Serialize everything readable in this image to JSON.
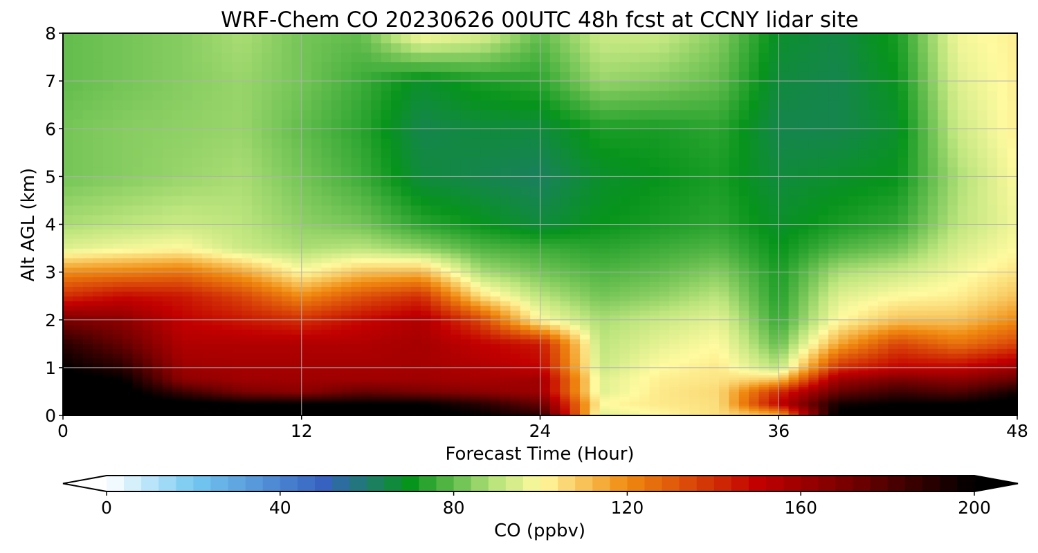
{
  "chart_data": {
    "type": "heatmap",
    "title": "WRF-Chem CO  20230626 00UTC 48h fcst at CCNY lidar site",
    "xlabel": "Forecast Time (Hour)",
    "ylabel": "Alt AGL (km)",
    "xlim": [
      0,
      48
    ],
    "ylim": [
      0,
      8
    ],
    "xticks": [
      0,
      12,
      24,
      36,
      48
    ],
    "yticks": [
      0,
      1,
      2,
      3,
      4,
      5,
      6,
      7,
      8
    ],
    "grid": true,
    "colorbar": {
      "label": "CO  (ppbv)",
      "range": [
        0,
        200
      ],
      "ticks": [
        0,
        40,
        80,
        120,
        160,
        200
      ],
      "extend": "both",
      "orientation": "horizontal",
      "stops": [
        {
          "value": 0,
          "color": "#ffffff"
        },
        {
          "value": 20,
          "color": "#74c9f2"
        },
        {
          "value": 50,
          "color": "#3762c0"
        },
        {
          "value": 70,
          "color": "#07941c"
        },
        {
          "value": 90,
          "color": "#bde57e"
        },
        {
          "value": 100,
          "color": "#fffaa0"
        },
        {
          "value": 120,
          "color": "#f08a10"
        },
        {
          "value": 150,
          "color": "#c20000"
        },
        {
          "value": 170,
          "color": "#7a0000"
        },
        {
          "value": 200,
          "color": "#000000"
        }
      ]
    },
    "x": [
      0,
      3,
      6,
      9,
      12,
      15,
      18,
      21,
      24,
      27,
      30,
      33,
      36,
      39,
      42,
      45,
      48
    ],
    "y": [
      0,
      0.25,
      0.5,
      0.75,
      1,
      1.5,
      2,
      2.5,
      3,
      3.5,
      4,
      5,
      6,
      7,
      8
    ],
    "z": [
      [
        205,
        205,
        205,
        205,
        205,
        205,
        205,
        200,
        190,
        95,
        100,
        105,
        110,
        205,
        205,
        205,
        205
      ],
      [
        205,
        205,
        205,
        200,
        200,
        200,
        200,
        190,
        175,
        100,
        103,
        105,
        150,
        195,
        200,
        200,
        205
      ],
      [
        205,
        205,
        185,
        170,
        165,
        175,
        170,
        165,
        160,
        95,
        103,
        106,
        140,
        175,
        185,
        180,
        195
      ],
      [
        205,
        200,
        165,
        160,
        160,
        160,
        160,
        158,
        160,
        95,
        102,
        104,
        110,
        160,
        170,
        165,
        175
      ],
      [
        200,
        190,
        160,
        158,
        158,
        158,
        158,
        155,
        150,
        92,
        100,
        103,
        90,
        140,
        150,
        150,
        160
      ],
      [
        190,
        175,
        155,
        155,
        155,
        155,
        158,
        150,
        145,
        90,
        96,
        100,
        80,
        115,
        135,
        125,
        135
      ],
      [
        170,
        165,
        150,
        145,
        140,
        148,
        155,
        135,
        100,
        88,
        92,
        96,
        75,
        100,
        110,
        110,
        120
      ],
      [
        140,
        148,
        145,
        135,
        120,
        132,
        140,
        105,
        90,
        82,
        85,
        90,
        73,
        95,
        100,
        102,
        110
      ],
      [
        120,
        122,
        125,
        115,
        100,
        110,
        112,
        88,
        82,
        78,
        80,
        84,
        72,
        88,
        92,
        98,
        104
      ],
      [
        95,
        98,
        100,
        92,
        88,
        90,
        85,
        78,
        76,
        74,
        76,
        78,
        70,
        78,
        82,
        94,
        100
      ],
      [
        88,
        90,
        92,
        90,
        85,
        82,
        74,
        70,
        66,
        70,
        72,
        74,
        68,
        72,
        75,
        90,
        98
      ],
      [
        82,
        84,
        86,
        88,
        82,
        76,
        66,
        64,
        62,
        68,
        70,
        72,
        66,
        68,
        70,
        88,
        100
      ],
      [
        82,
        84,
        85,
        86,
        80,
        74,
        64,
        66,
        66,
        72,
        72,
        74,
        64,
        64,
        68,
        92,
        102
      ],
      [
        80,
        82,
        84,
        86,
        82,
        76,
        68,
        72,
        74,
        86,
        84,
        80,
        66,
        64,
        70,
        95,
        102
      ],
      [
        80,
        82,
        84,
        88,
        82,
        80,
        100,
        95,
        80,
        92,
        92,
        84,
        68,
        65,
        72,
        98,
        102
      ]
    ]
  }
}
